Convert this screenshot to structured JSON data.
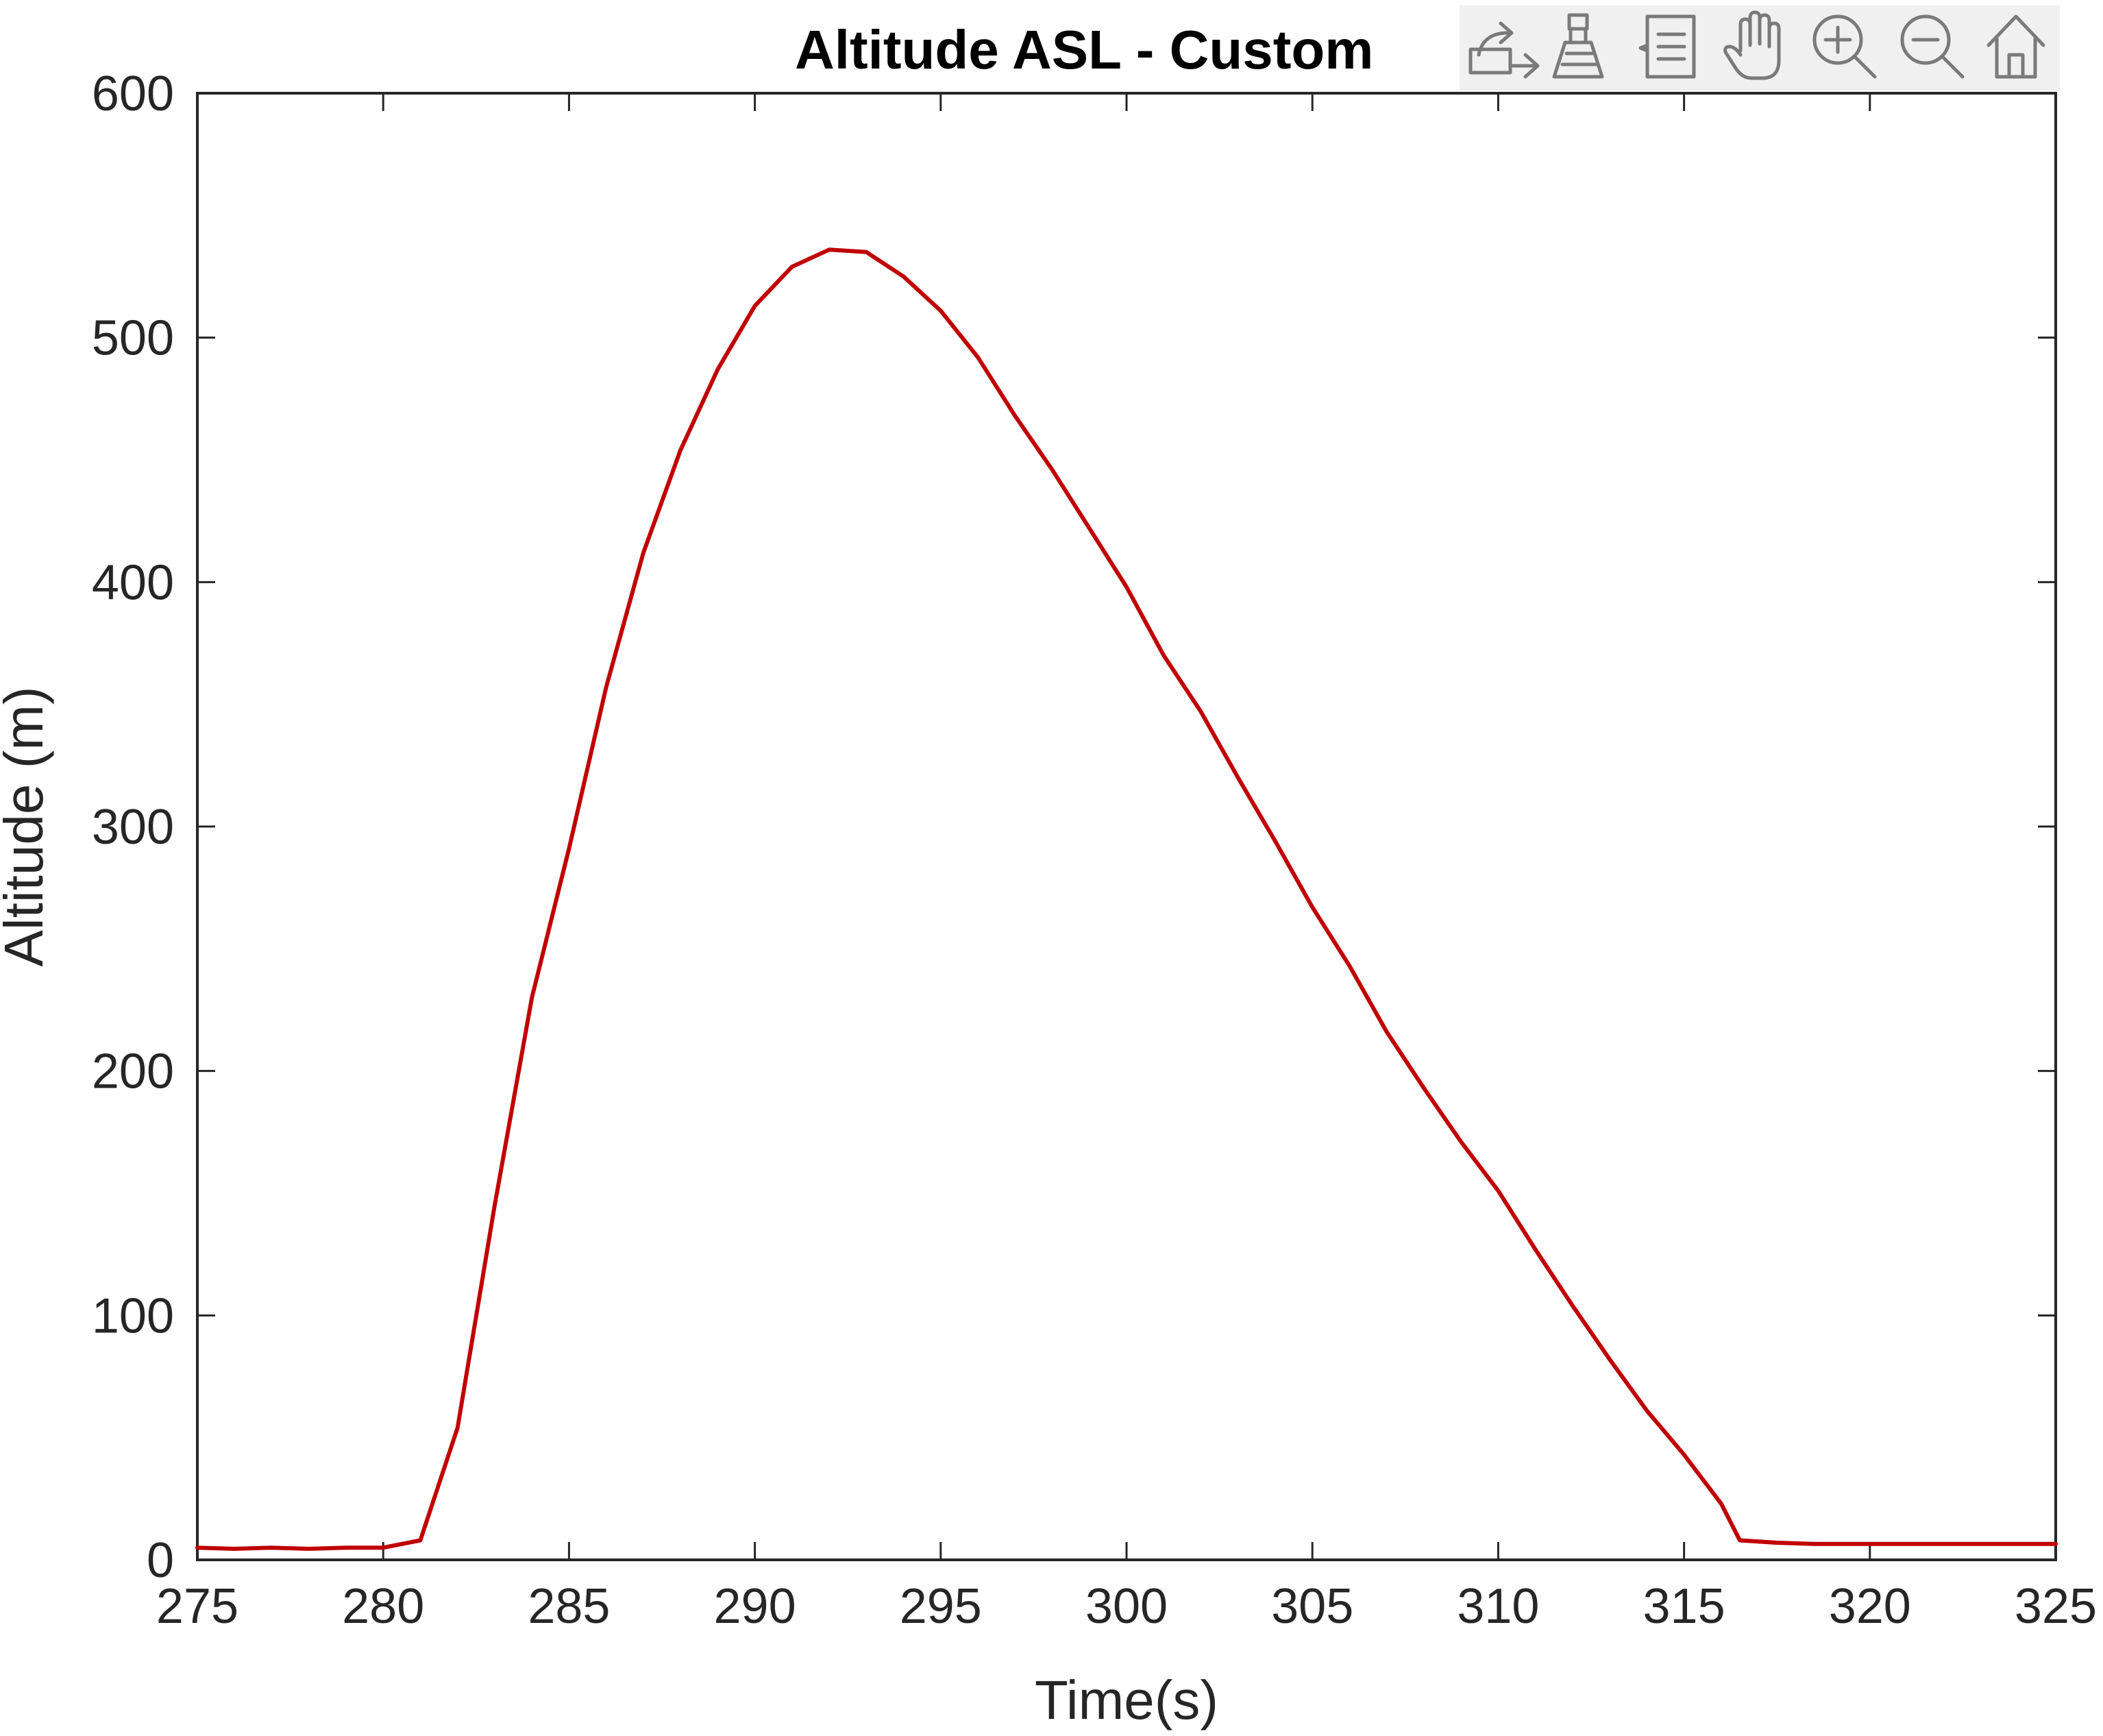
{
  "toolbar": {
    "icons": [
      "export-icon",
      "brush-icon",
      "legend-icon",
      "pan-hand-icon",
      "zoom-in-icon",
      "zoom-out-icon",
      "home-icon"
    ],
    "background_color": "#f0f0f0",
    "icon_color": "#7a7a7a"
  },
  "chart_data": {
    "type": "line",
    "title": "Altitude ASL - Custom",
    "xlabel": "Time(s)",
    "ylabel": "Altitude (m)",
    "xlim": [
      275,
      325
    ],
    "ylim": [
      0,
      600
    ],
    "xticks": [
      275,
      280,
      285,
      290,
      295,
      300,
      305,
      310,
      315,
      320,
      325
    ],
    "yticks": [
      0,
      100,
      200,
      300,
      400,
      500,
      600
    ],
    "grid": false,
    "series": [
      {
        "color": "#c00000",
        "x": [
          275,
          276,
          277,
          278,
          279,
          280,
          281,
          282,
          283,
          284,
          285,
          286,
          287,
          288,
          289,
          290,
          291,
          292,
          293,
          294,
          295,
          296,
          297,
          298,
          299,
          300,
          301,
          302,
          303,
          304,
          305,
          306,
          307,
          308,
          309,
          310,
          311,
          312,
          313,
          314,
          315,
          316,
          316.5,
          317.5,
          318.5,
          320,
          321,
          322,
          323,
          324,
          325
        ],
        "y": [
          5,
          4.5,
          5,
          4.5,
          5,
          5,
          8,
          54,
          145,
          230,
          291,
          357,
          412,
          454,
          487,
          513,
          529,
          536,
          535,
          525,
          511,
          492,
          468,
          446,
          422,
          398,
          370,
          347,
          320,
          294,
          267,
          243,
          216,
          193,
          171,
          151,
          127,
          104,
          82,
          61,
          43,
          23,
          8,
          7,
          6.5,
          6.5,
          6.5,
          6.5,
          6.5,
          6.5,
          6.5
        ]
      }
    ]
  }
}
